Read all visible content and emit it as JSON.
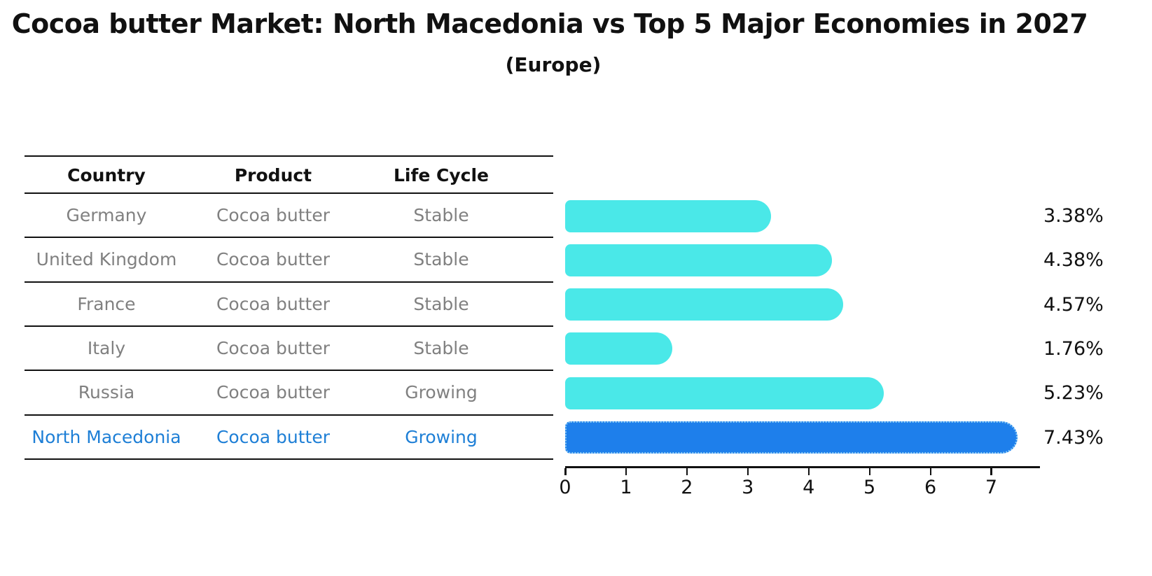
{
  "header": {
    "title": "Cocoa butter Market: North Macedonia vs Top 5 Major Economies in 2027",
    "subtitle": "(Europe)"
  },
  "table": {
    "columns": [
      "Country",
      "Product",
      "Life Cycle"
    ],
    "rows": [
      {
        "country": "Germany",
        "product": "Cocoa butter",
        "life_cycle": "Stable",
        "highlight": false
      },
      {
        "country": "United Kingdom",
        "product": "Cocoa butter",
        "life_cycle": "Stable",
        "highlight": false
      },
      {
        "country": "France",
        "product": "Cocoa butter",
        "life_cycle": "Stable",
        "highlight": false
      },
      {
        "country": "Italy",
        "product": "Cocoa butter",
        "life_cycle": "Stable",
        "highlight": false
      },
      {
        "country": "Russia",
        "product": "Cocoa butter",
        "life_cycle": "Growing",
        "highlight": false
      },
      {
        "country": "North Macedonia",
        "product": "Cocoa butter",
        "life_cycle": "Growing",
        "highlight": true
      }
    ],
    "row_text_color": "#808080",
    "highlight_text_color": "#1e7fd6"
  },
  "chart_data": {
    "type": "bar",
    "orientation": "horizontal",
    "title": "Cocoa butter Market: North Macedonia vs Top 5 Major Economies in 2027",
    "subtitle": "(Europe)",
    "categories": [
      "Germany",
      "United Kingdom",
      "France",
      "Italy",
      "Russia",
      "North Macedonia"
    ],
    "values": [
      3.38,
      4.38,
      4.57,
      1.76,
      5.23,
      7.43
    ],
    "value_labels": [
      "3.38%",
      "4.38%",
      "4.57%",
      "1.76%",
      "5.23%",
      "7.43%"
    ],
    "bar_colors": [
      "#4ae8e8",
      "#4ae8e8",
      "#4ae8e8",
      "#4ae8e8",
      "#4ae8e8",
      "#1e7feb"
    ],
    "highlight_index": 5,
    "highlight_border_color": "#8ecdf5",
    "xlabel": "",
    "ylabel": "",
    "xlim": [
      0,
      7.8
    ],
    "xticks": [
      0,
      1,
      2,
      3,
      4,
      5,
      6,
      7
    ],
    "grid": false,
    "legend": false
  }
}
